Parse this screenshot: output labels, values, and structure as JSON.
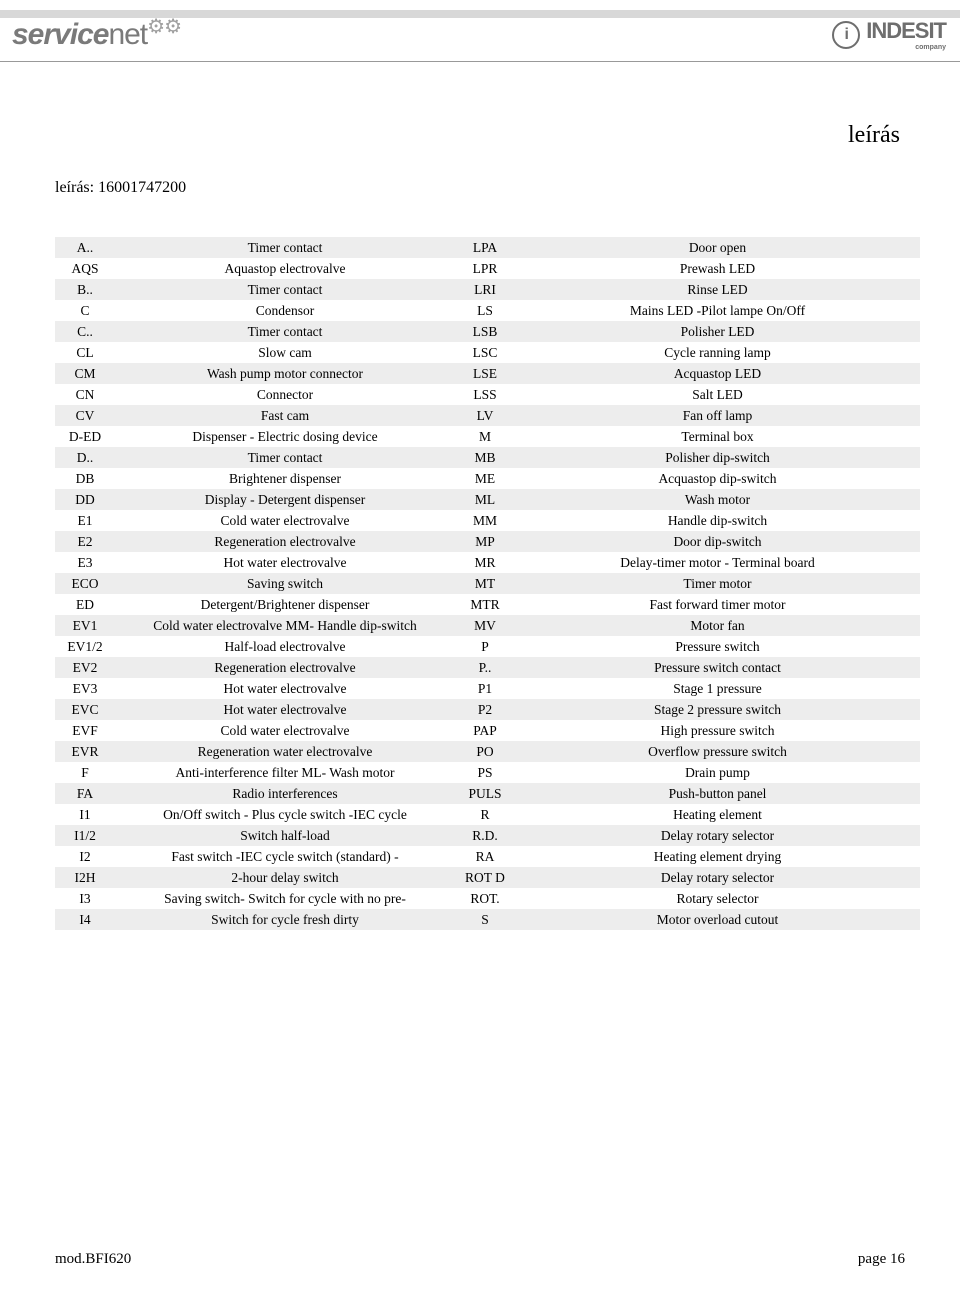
{
  "header": {
    "logo_left_a": "service",
    "logo_left_b": "net",
    "gear_glyph": "⚙⚙",
    "logo_right_text": "INDESIT",
    "logo_right_sub": "company",
    "logo_right_icon": "i"
  },
  "title": "leírás",
  "subtitle": "leírás: 16001747200",
  "rows": [
    {
      "c1": "A..",
      "d1": "Timer contact",
      "c2": "LPA",
      "d2": "Door open",
      "shade": true
    },
    {
      "c1": "AQS",
      "d1": "Aquastop electrovalve",
      "c2": "LPR",
      "d2": "Prewash LED",
      "shade": false
    },
    {
      "c1": "B..",
      "d1": "Timer contact",
      "c2": "LRI",
      "d2": "Rinse LED",
      "shade": true
    },
    {
      "c1": "C",
      "d1": "Condensor",
      "c2": "LS",
      "d2": "Mains LED -Pilot lampe On/Off",
      "shade": false
    },
    {
      "c1": "C..",
      "d1": "Timer contact",
      "c2": "LSB",
      "d2": "Polisher LED",
      "shade": true
    },
    {
      "c1": "CL",
      "d1": "Slow cam",
      "c2": "LSC",
      "d2": "Cycle ranning lamp",
      "shade": false
    },
    {
      "c1": "CM",
      "d1": "Wash pump motor connector",
      "c2": "LSE",
      "d2": "Acquastop LED",
      "shade": true
    },
    {
      "c1": "CN",
      "d1": "Connector",
      "c2": "LSS",
      "d2": "Salt LED",
      "shade": false
    },
    {
      "c1": "CV",
      "d1": "Fast cam",
      "c2": "LV",
      "d2": "Fan off lamp",
      "shade": true
    },
    {
      "c1": "D-ED",
      "d1": "Dispenser - Electric dosing device",
      "c2": "M",
      "d2": "Terminal box",
      "shade": false
    },
    {
      "c1": "D..",
      "d1": "Timer contact",
      "c2": "MB",
      "d2": "Polisher dip-switch",
      "shade": true
    },
    {
      "c1": "DB",
      "d1": "Brightener dispenser",
      "c2": "ME",
      "d2": "Acquastop dip-switch",
      "shade": false
    },
    {
      "c1": "DD",
      "d1": "Display  - Detergent dispenser",
      "c2": "ML",
      "d2": "Wash motor",
      "shade": true
    },
    {
      "c1": "E1",
      "d1": "Cold water electrovalve",
      "c2": "MM",
      "d2": "Handle dip-switch",
      "shade": false
    },
    {
      "c1": "E2",
      "d1": "Regeneration electrovalve",
      "c2": "MP",
      "d2": "Door dip-switch",
      "shade": true
    },
    {
      "c1": "E3",
      "d1": "Hot water electrovalve",
      "c2": "MR",
      "d2": "Delay-timer motor - Terminal board",
      "shade": false
    },
    {
      "c1": "ECO",
      "d1": "Saving switch",
      "c2": "MT",
      "d2": "Timer motor",
      "shade": true
    },
    {
      "c1": "ED",
      "d1": "Detergent/Brightener dispenser",
      "c2": "MTR",
      "d2": "Fast forward timer motor",
      "shade": false
    },
    {
      "c1": "EV1",
      "d1": "Cold water electrovalve MM- Handle dip-switch",
      "c2": "MV",
      "d2": "Motor fan",
      "shade": true
    },
    {
      "c1": "EV1/2",
      "d1": "Half-load electrovalve",
      "c2": "P",
      "d2": "Pressure switch",
      "shade": false
    },
    {
      "c1": "EV2",
      "d1": "Regeneration electrovalve",
      "c2": "P..",
      "d2": "Pressure switch contact",
      "shade": true
    },
    {
      "c1": "EV3",
      "d1": "Hot water electrovalve",
      "c2": "P1",
      "d2": "Stage 1 pressure",
      "shade": false
    },
    {
      "c1": "EVC",
      "d1": "Hot water electrovalve",
      "c2": "P2",
      "d2": "Stage 2 pressure switch",
      "shade": true
    },
    {
      "c1": "EVF",
      "d1": "Cold water electrovalve",
      "c2": "PAP",
      "d2": "High pressure switch",
      "shade": false
    },
    {
      "c1": "EVR",
      "d1": "Regeneration water electrovalve",
      "c2": "PO",
      "d2": "Overflow pressure switch",
      "shade": true
    },
    {
      "c1": "F",
      "d1": "Anti-interference filter ML- Wash motor",
      "c2": "PS",
      "d2": "Drain pump",
      "shade": false
    },
    {
      "c1": "FA",
      "d1": "Radio interferences",
      "c2": "PULS",
      "d2": "Push-button panel",
      "shade": true
    },
    {
      "c1": "I1",
      "d1": "On/Off switch - Plus cycle switch -IEC cycle",
      "c2": "R",
      "d2": "Heating element",
      "shade": false
    },
    {
      "c1": "I1/2",
      "d1": "Switch half-load",
      "c2": "R.D.",
      "d2": "Delay rotary selector",
      "shade": true
    },
    {
      "c1": "I2",
      "d1": "Fast switch -IEC cycle switch (standard) -",
      "c2": "RA",
      "d2": "Heating element drying",
      "shade": false
    },
    {
      "c1": "I2H",
      "d1": "2-hour delay switch",
      "c2": "ROT D",
      "d2": "Delay rotary selector",
      "shade": true
    },
    {
      "c1": "I3",
      "d1": "Saving switch- Switch for cycle with no pre-",
      "c2": "ROT.",
      "d2": "Rotary selector",
      "shade": false
    },
    {
      "c1": "I4",
      "d1": "Switch for cycle fresh dirty",
      "c2": "S",
      "d2": "Motor overload cutout",
      "shade": true
    }
  ],
  "footer": {
    "left": "mod.BFI620",
    "right": "page 16"
  },
  "colors": {
    "shade": "#ededed",
    "text": "#000000",
    "header_band": "#d8d8d8",
    "logo_gray": "#7a7a7a"
  }
}
